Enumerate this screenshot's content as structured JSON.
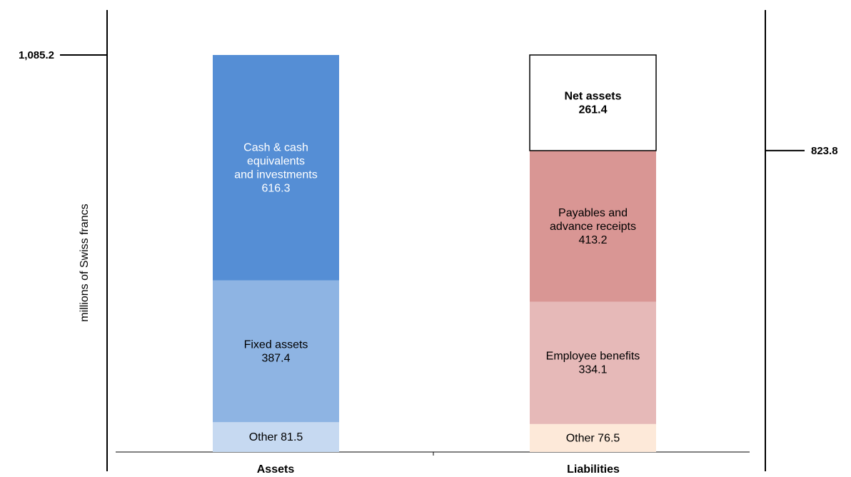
{
  "chart_data": {
    "type": "bar",
    "stacked": true,
    "ylabel": "millions of Swiss francs",
    "categories": [
      "Assets",
      "Liabilities"
    ],
    "bars": [
      {
        "category": "Assets",
        "total": 1085.2,
        "total_label": "1,085.2",
        "segments": [
          {
            "lines": [
              "Other 81.5"
            ],
            "value": 81.5,
            "color": "#c6d9f1",
            "text_color": "#000000",
            "bold": false
          },
          {
            "lines": [
              "Fixed assets",
              "387.4"
            ],
            "value": 387.4,
            "color": "#8eb4e3",
            "text_color": "#000000",
            "bold": false
          },
          {
            "lines": [
              "Cash  & cash",
              "equivalents",
              "and investments",
              "616.3"
            ],
            "value": 616.3,
            "color": "#558ed5",
            "text_color": "#ffffff",
            "bold": false
          }
        ]
      },
      {
        "category": "Liabilities",
        "total": 823.8,
        "total_label": "823.8",
        "segments": [
          {
            "lines": [
              "Other 76.5"
            ],
            "value": 76.5,
            "color": "#fde9d9",
            "text_color": "#000000",
            "bold": false
          },
          {
            "lines": [
              "Employee benefits",
              "334.1"
            ],
            "value": 334.1,
            "color": "#e6b9b8",
            "text_color": "#000000",
            "bold": false
          },
          {
            "lines": [
              "Payables and",
              "advance receipts",
              "413.2"
            ],
            "value": 413.2,
            "color": "#d99694",
            "text_color": "#000000",
            "bold": false
          },
          {
            "lines": [
              "Net assets",
              "261.4"
            ],
            "value": 261.4,
            "color": "#ffffff",
            "text_color": "#000000",
            "bold": true,
            "outlined": true
          }
        ]
      }
    ],
    "grid": false,
    "legend": "none"
  }
}
